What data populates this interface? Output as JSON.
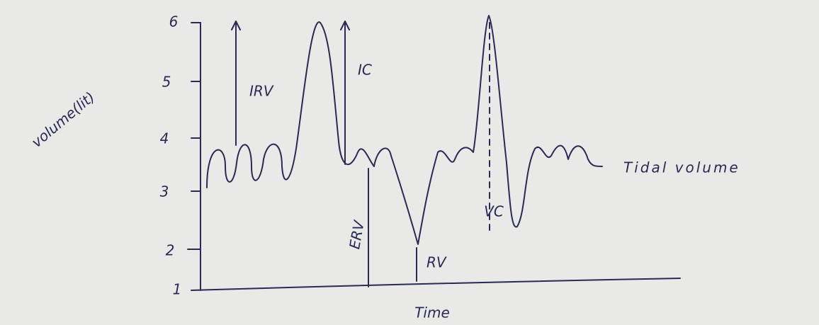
{
  "y_axis": {
    "label": "volume(lit)",
    "ticks": [
      "6",
      "5",
      "4",
      "3",
      "2",
      "1"
    ]
  },
  "x_axis": {
    "label": "Time"
  },
  "annotations": {
    "irv": "IRV",
    "ic": "IC",
    "erv": "ERV",
    "rv": "RV",
    "vc": "VC",
    "tidal": "Tidal volume"
  }
}
